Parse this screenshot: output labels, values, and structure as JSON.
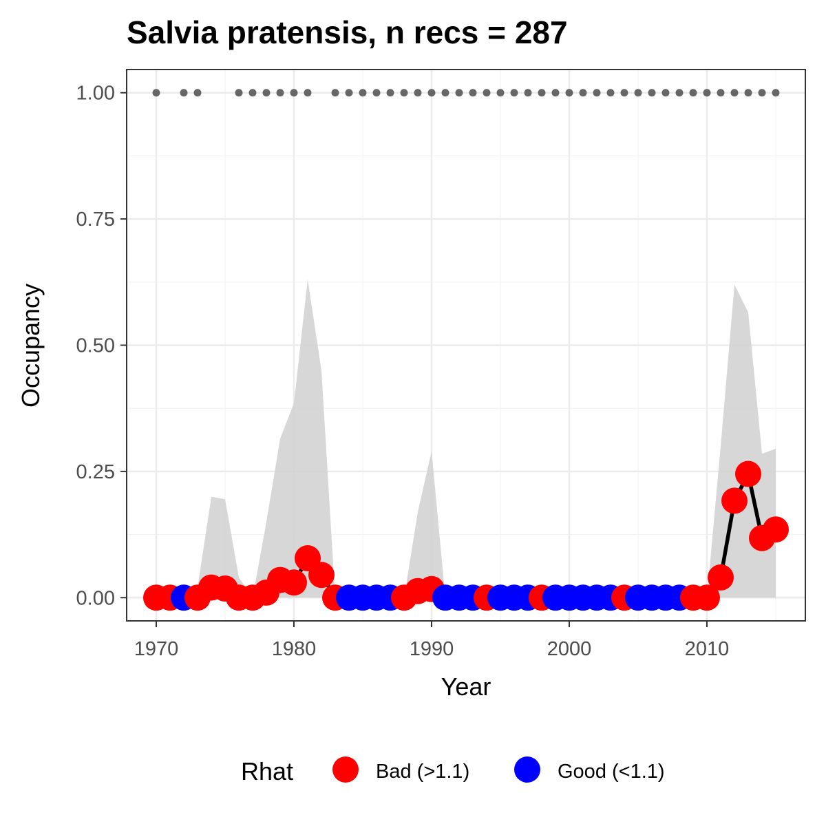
{
  "chart_data": {
    "type": "line",
    "title": "Salvia pratensis, n recs = 287",
    "xlabel": "Year",
    "ylabel": "Occupancy",
    "xlim": [
      1967.9,
      1917.1
    ],
    "ylim": [
      -0.046,
      1.046
    ],
    "x_ticks": [
      1970,
      1980,
      1990,
      2000,
      2010
    ],
    "x_tick_labels": [
      "1970",
      "1980",
      "1990",
      "2000",
      "2010"
    ],
    "y_ticks": [
      0,
      0.25,
      0.5,
      0.75,
      1.0
    ],
    "y_tick_labels": [
      "0.00",
      "0.25",
      "0.50",
      "0.75",
      "1.00"
    ],
    "grid": true,
    "legend": {
      "title": "Rhat",
      "position": "bottom",
      "entries": [
        {
          "label": "Bad (>1.1)",
          "color": "#ff0000"
        },
        {
          "label": "Good (<1.1)",
          "color": "#0000ff"
        }
      ]
    },
    "colors": {
      "bad": "#ff0000",
      "good": "#0000ff",
      "ribbon": "#d3d3d3",
      "records": "#666666",
      "line": "#000000"
    },
    "x": [
      1970,
      1971,
      1972,
      1973,
      1974,
      1975,
      1976,
      1977,
      1978,
      1979,
      1980,
      1981,
      1982,
      1983,
      1984,
      1985,
      1986,
      1987,
      1988,
      1989,
      1990,
      1991,
      1992,
      1993,
      1994,
      1995,
      1996,
      1997,
      1998,
      1999,
      2000,
      2001,
      2002,
      2003,
      2004,
      2005,
      2006,
      2007,
      2008,
      2009,
      2010,
      2011,
      2012,
      2013,
      2014,
      2015
    ],
    "occupancy": [
      0,
      0,
      0,
      0,
      0.02,
      0.018,
      0,
      0,
      0.01,
      0.035,
      0.03,
      0.078,
      0.045,
      0,
      0,
      0,
      0,
      0,
      0,
      0.013,
      0.017,
      0,
      0,
      0,
      0,
      0,
      0,
      0,
      0,
      0,
      0,
      0,
      0,
      0,
      0,
      0,
      0,
      0,
      0,
      0,
      0,
      0.04,
      0.192,
      0.245,
      0.118,
      0.135
    ],
    "rhat": [
      "Bad",
      "Bad",
      "Good",
      "Bad",
      "Bad",
      "Bad",
      "Bad",
      "Bad",
      "Bad",
      "Bad",
      "Bad",
      "Bad",
      "Bad",
      "Bad",
      "Good",
      "Good",
      "Good",
      "Good",
      "Bad",
      "Bad",
      "Bad",
      "Good",
      "Good",
      "Good",
      "Bad",
      "Good",
      "Good",
      "Good",
      "Bad",
      "Good",
      "Good",
      "Good",
      "Good",
      "Good",
      "Bad",
      "Good",
      "Good",
      "Good",
      "Good",
      "Bad",
      "Bad",
      "Bad",
      "Bad",
      "Bad",
      "Bad",
      "Bad"
    ],
    "lower_ci": [
      0,
      0,
      0,
      0,
      0,
      0,
      0,
      0,
      0,
      0,
      0,
      0,
      0,
      0,
      0,
      0,
      0,
      0,
      0,
      0,
      0,
      0,
      0,
      0,
      0,
      0,
      0,
      0,
      0,
      0,
      0,
      0,
      0,
      0,
      0,
      0,
      0,
      0,
      0,
      0,
      0,
      0,
      0,
      0,
      0,
      0
    ],
    "upper_ci": [
      0,
      0,
      0,
      0.02,
      0.2,
      0.195,
      0.04,
      0,
      0.15,
      0.315,
      0.385,
      0.63,
      0.45,
      0,
      0,
      0,
      0,
      0,
      0,
      0.17,
      0.29,
      0,
      0,
      0,
      0,
      0,
      0,
      0,
      0,
      0,
      0,
      0,
      0,
      0,
      0,
      0,
      0,
      0,
      0,
      0,
      0,
      0.3,
      0.62,
      0.565,
      0.285,
      0.295
    ],
    "record_years": [
      1970,
      1972,
      1973,
      1976,
      1977,
      1978,
      1979,
      1980,
      1981,
      1983,
      1984,
      1985,
      1986,
      1987,
      1988,
      1989,
      1990,
      1991,
      1992,
      1993,
      1994,
      1995,
      1996,
      1997,
      1998,
      1999,
      2000,
      2001,
      2002,
      2003,
      2004,
      2005,
      2006,
      2007,
      2008,
      2009,
      2010,
      2011,
      2012,
      2013,
      2014,
      2015
    ],
    "record_value": 1.0
  }
}
